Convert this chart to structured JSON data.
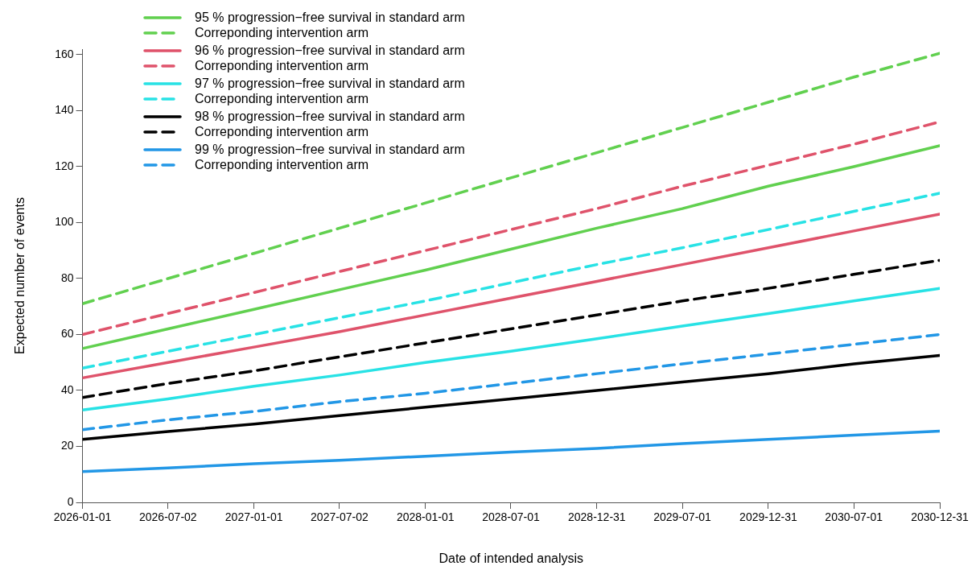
{
  "chart_data": {
    "type": "line",
    "xlabel": "Date of intended analysis",
    "ylabel": "Expected number of events",
    "x": [
      "2026-01-01",
      "2026-07-02",
      "2027-01-01",
      "2027-07-02",
      "2028-01-01",
      "2028-07-01",
      "2028-12-31",
      "2029-07-01",
      "2029-12-31",
      "2030-07-01",
      "2030-12-31"
    ],
    "xlim": [
      "2026-01-01",
      "2030-12-31"
    ],
    "xticks": [
      "2026-01-01",
      "2026-07-02",
      "2027-01-01",
      "2027-07-02",
      "2028-01-01",
      "2028-07-01",
      "2028-12-31",
      "2029-07-01",
      "2029-12-31",
      "2030-07-01",
      "2030-12-31"
    ],
    "ylim": [
      0,
      162
    ],
    "yticks": [
      0,
      20,
      40,
      60,
      80,
      100,
      120,
      140,
      160
    ],
    "legend": "top left",
    "marker": "none",
    "series": [
      {
        "name": "95 % progression−free survival in standard arm",
        "color": "#61d04f",
        "line_style": "solid",
        "values": [
          55,
          62,
          69,
          76,
          83,
          90.5,
          98,
          105,
          113,
          120,
          127.5
        ]
      },
      {
        "name": "Correponding intervention arm",
        "color": "#61d04f",
        "line_style": "dashed",
        "values": [
          71,
          80,
          89,
          98,
          107,
          116,
          125,
          134,
          143,
          152,
          160.5
        ]
      },
      {
        "name": "96 % progression−free survival in standard arm",
        "color": "#df536b",
        "line_style": "solid",
        "values": [
          44.5,
          50,
          55.5,
          61,
          67,
          73,
          79,
          85,
          91,
          97,
          103
        ]
      },
      {
        "name": "Correponding intervention arm",
        "color": "#df536b",
        "line_style": "dashed",
        "values": [
          60,
          67.5,
          75,
          82.5,
          90,
          97.5,
          105,
          113,
          120.5,
          128,
          136
        ]
      },
      {
        "name": "97 % progression−free survival in standard arm",
        "color": "#28e2e5",
        "line_style": "solid",
        "values": [
          33,
          37,
          41.5,
          45.5,
          50,
          54,
          58.5,
          63,
          67.5,
          72,
          76.5
        ]
      },
      {
        "name": "Correponding intervention arm",
        "color": "#28e2e5",
        "line_style": "dashed",
        "values": [
          48,
          54,
          60,
          66,
          72,
          78.5,
          85,
          91,
          97.5,
          104,
          110.5
        ]
      },
      {
        "name": "98 % progression−free survival in standard arm",
        "color": "#000000",
        "line_style": "solid",
        "values": [
          22.5,
          25.3,
          28,
          31,
          34,
          37,
          40,
          43,
          46,
          49.5,
          52.5
        ]
      },
      {
        "name": "Correponding intervention arm",
        "color": "#000000",
        "line_style": "dashed",
        "values": [
          37.5,
          42.5,
          47,
          52,
          57,
          62,
          67,
          72,
          76.5,
          81.5,
          86.5
        ]
      },
      {
        "name": "99 % progression−free survival in standard arm",
        "color": "#2297e6",
        "line_style": "solid",
        "values": [
          11,
          12.3,
          13.8,
          15,
          16.5,
          18,
          19.3,
          21,
          22.5,
          24,
          25.5
        ]
      },
      {
        "name": "Correponding intervention arm",
        "color": "#2297e6",
        "line_style": "dashed",
        "values": [
          26,
          29.5,
          32.5,
          36,
          39,
          42.5,
          46,
          49.5,
          53,
          56.5,
          60
        ]
      }
    ]
  }
}
